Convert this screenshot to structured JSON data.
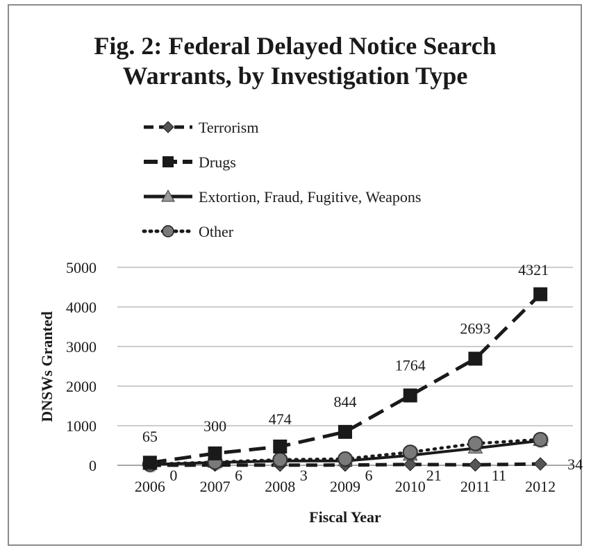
{
  "chart_data": {
    "type": "line",
    "title_lines": [
      "Fig. 2:  Federal Delayed Notice Search",
      "Warrants, by Investigation Type"
    ],
    "xlabel": "Fiscal Year",
    "ylabel": "DNSWs Granted",
    "ylim": [
      0,
      5000
    ],
    "yticks": [
      "0",
      "1000",
      "2000",
      "3000",
      "4000",
      "5000"
    ],
    "categories": [
      "2006",
      "2007",
      "2008",
      "2009",
      "2010",
      "2011",
      "2012"
    ],
    "grid": true,
    "legend_position": "top",
    "series": [
      {
        "name": "Terrorism",
        "values": [
          0,
          6,
          3,
          6,
          21,
          11,
          34
        ],
        "data_labels": [
          "0",
          "6",
          "3",
          "6",
          "21",
          "11",
          "34"
        ],
        "line_style": "dashed",
        "marker": "diamond",
        "color": "#1a1a1a",
        "marker_fill": "#555555"
      },
      {
        "name": "Drugs",
        "values": [
          65,
          300,
          474,
          844,
          1764,
          2693,
          4321
        ],
        "data_labels": [
          "65",
          "300",
          "474",
          "844",
          "1764",
          "2693",
          "4321"
        ],
        "line_style": "long-dashed",
        "marker": "square",
        "color": "#1a1a1a",
        "marker_fill": "#1a1a1a"
      },
      {
        "name": "Extortion, Fraud, Fugitive, Weapons",
        "values": [
          20,
          70,
          110,
          110,
          250,
          430,
          620
        ],
        "line_style": "solid",
        "marker": "triangle",
        "color": "#1a1a1a",
        "marker_fill": "#9a9a9a"
      },
      {
        "name": "Other",
        "values": [
          25,
          80,
          140,
          160,
          330,
          550,
          650
        ],
        "line_style": "dotted",
        "marker": "circle",
        "color": "#1a1a1a",
        "marker_fill": "#7a7a7a"
      }
    ]
  }
}
